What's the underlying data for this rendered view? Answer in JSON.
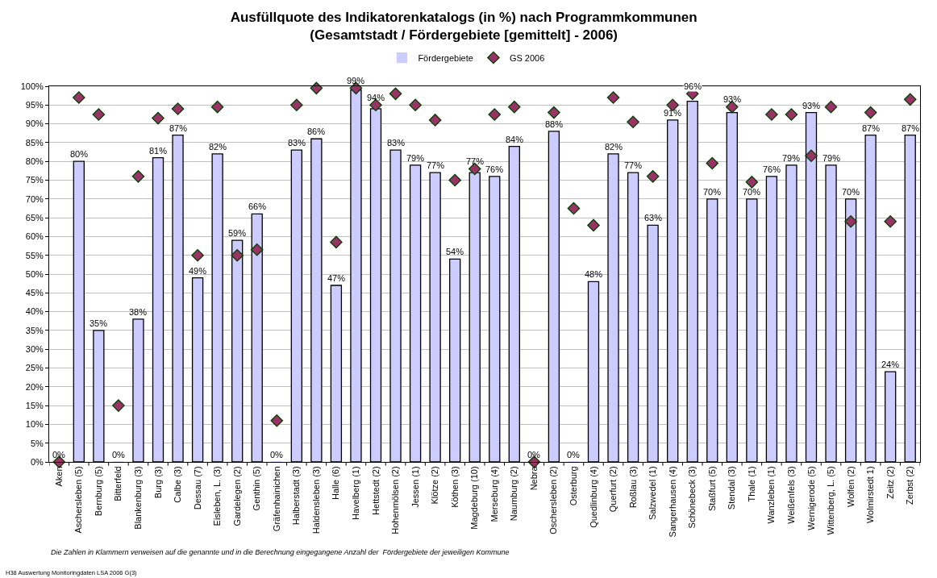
{
  "chart_data": {
    "type": "bar",
    "title": "Ausfüllquote des Indikatorenkatalogs (in %) nach Programmkommunen\n(Gesamtstadt / Fördergebiete [gemittelt] - 2006)",
    "categories": [
      "Aken",
      "Aschersleben (5)",
      "Bernburg (5)",
      "Bitterfeld",
      "Blankenburg (3)",
      "Burg (3)",
      "Calbe (3)",
      "Dessau (7)",
      "Eisleben, L. (3)",
      "Gardelegen (2)",
      "Genthin (5)",
      "Gräfenhainichen",
      "Halberstadt (3)",
      "Haldensleben (3)",
      "Halle (6)",
      "Havelberg (1)",
      "Hettstedt (2)",
      "Hohenmölsen (2)",
      "Jessen (1)",
      "Klötze (2)",
      "Köthen (3)",
      "Magdeburg (10)",
      "Merseburg (4)",
      "Naumburg (2)",
      "Nebra",
      "Oschersleben (2)",
      "Osterburg",
      "Quedlinburg (4)",
      "Querfurt (2)",
      "Roßlau (3)",
      "Salzwedel (1)",
      "Sangerhausen (4)",
      "Schönebeck (3)",
      "Staßfurt (5)",
      "Stendal (3)",
      "Thale (1)",
      "Wanzleben (1)",
      "Weißenfels (3)",
      "Wernigerode (5)",
      "Wittenberg, L. (5)",
      "Wolfen (2)",
      "Wolmirstedt 1)",
      "Zeitz (2)",
      "Zerbst (2)"
    ],
    "series": [
      {
        "name": "Fördergebiete",
        "color": "#ccccff",
        "values": [
          0,
          80,
          35,
          0,
          38,
          81,
          87,
          49,
          82,
          59,
          66,
          0,
          83,
          86,
          47,
          99,
          94,
          83,
          79,
          77,
          54,
          77,
          76,
          84,
          0,
          88,
          0,
          48,
          82,
          77,
          63,
          91,
          96,
          70,
          93,
          70,
          76,
          79,
          93,
          79,
          70,
          87,
          24,
          87
        ],
        "value_labels": [
          "0%",
          "80%",
          "35%",
          "0%",
          "38%",
          "81%",
          "87%",
          "49%",
          "82%",
          "59%",
          "66%",
          "0%",
          "83%",
          "86%",
          "47%",
          "99%",
          "94%",
          "83%",
          "79%",
          "77%",
          "54%",
          "77%",
          "76%",
          "84%",
          "0%",
          "88%",
          "0%",
          "48%",
          "82%",
          "77%",
          "63%",
          "91%",
          "96%",
          "70%",
          "93%",
          "70%",
          "76%",
          "79%",
          "93%",
          "79%",
          "70%",
          "87%",
          "24%",
          "87%"
        ]
      },
      {
        "name": "GS 2006",
        "type": "scatter",
        "color": "#993366",
        "marker": "diamond",
        "values": [
          0,
          97,
          92.5,
          15,
          76,
          91.5,
          94,
          55,
          94.5,
          55,
          56.5,
          11,
          95,
          99.5,
          58.5,
          99.5,
          95,
          98,
          95,
          91,
          75,
          78,
          92.5,
          94.5,
          0,
          93,
          67.5,
          63,
          97,
          90.5,
          76,
          95,
          98,
          79.5,
          94.5,
          74.5,
          92.5,
          92.5,
          81.5,
          94.5,
          64,
          93,
          64,
          96.5
        ]
      }
    ],
    "ylim": [
      0,
      100
    ],
    "yticks": [
      {
        "value": 0,
        "label": "0%"
      },
      {
        "value": 5,
        "label": "5%"
      },
      {
        "value": 10,
        "label": "10%"
      },
      {
        "value": 15,
        "label": "15%"
      },
      {
        "value": 20,
        "label": "20%"
      },
      {
        "value": 25,
        "label": "25%"
      },
      {
        "value": 30,
        "label": "30%"
      },
      {
        "value": 35,
        "label": "35%"
      },
      {
        "value": 40,
        "label": "40%"
      },
      {
        "value": 45,
        "label": "45%"
      },
      {
        "value": 50,
        "label": "50%"
      },
      {
        "value": 55,
        "label": "55%"
      },
      {
        "value": 60,
        "label": "60%"
      },
      {
        "value": 65,
        "label": "65%"
      },
      {
        "value": 70,
        "label": "70%"
      },
      {
        "value": 75,
        "label": "75%"
      },
      {
        "value": 80,
        "label": "80%"
      },
      {
        "value": 85,
        "label": "85%"
      },
      {
        "value": 90,
        "label": "90%"
      },
      {
        "value": 95,
        "label": "95%"
      },
      {
        "value": 100,
        "label": "100%"
      }
    ],
    "grid": "y",
    "legend": "top",
    "annotations": [
      "Die Zahlen in Klammern verweisen auf die genannte und in die Berechnung eingegangene Anzahl der  Fördergebiete der jeweiligen Kommune",
      "H38 Auswertung Monitoringdaten LSA 2006 G(3)"
    ]
  }
}
